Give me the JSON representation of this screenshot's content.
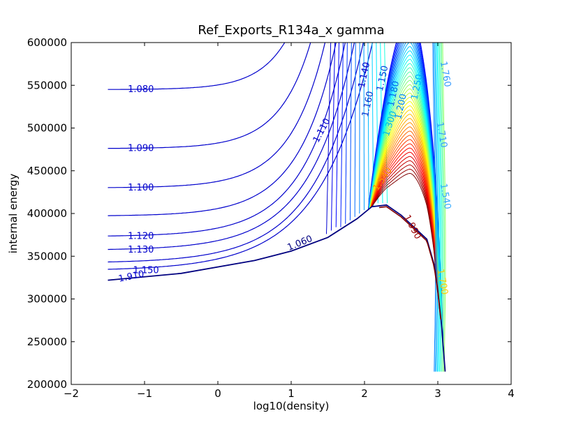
{
  "chart_data": {
    "type": "contour",
    "title": "Ref_Exports_R134a_x gamma",
    "xlabel": "log10(density)",
    "ylabel": "internal energy",
    "xlim": [
      -2,
      4
    ],
    "ylim": [
      200000,
      600000
    ],
    "x_ticks": [
      "−2",
      "−1",
      "0",
      "1",
      "2",
      "3",
      "4"
    ],
    "y_ticks": [
      "200000",
      "250000",
      "300000",
      "350000",
      "400000",
      "450000",
      "500000",
      "550000",
      "600000"
    ],
    "x_tick_values": [
      -2,
      -1,
      0,
      1,
      2,
      3,
      4
    ],
    "y_tick_values": [
      200000,
      250000,
      300000,
      350000,
      400000,
      450000,
      500000,
      550000,
      600000
    ],
    "grid": false,
    "colormap": "jet",
    "data_x_range": [
      -1.5,
      3.1
    ],
    "saturation_dome": {
      "x": [
        -1.5,
        -0.5,
        0.5,
        1.0,
        1.5,
        1.9,
        2.1,
        2.3,
        2.5,
        2.7,
        2.85,
        2.95,
        3.0,
        3.05,
        3.1
      ],
      "y": [
        322000,
        330000,
        345000,
        356000,
        372000,
        394000,
        408000,
        410000,
        398000,
        382000,
        370000,
        340000,
        310000,
        270000,
        215000
      ]
    },
    "contour_levels": [
      {
        "value": 1.08,
        "x_start": -0.7,
        "y_left": 545000
      },
      {
        "value": 1.09,
        "x_start": -0.5,
        "y_left": 476000
      },
      {
        "value": 1.1,
        "x_start": -0.7,
        "y_left": 430000
      },
      {
        "value": 1.11,
        "x_start": -1.5,
        "y_left": 397000
      },
      {
        "value": 1.12,
        "x_start": -0.7,
        "y_left": 373000
      },
      {
        "value": 1.13,
        "x_start": -0.7,
        "y_left": 357000
      },
      {
        "value": 1.14,
        "x_start": -1.5,
        "y_left": 342000
      },
      {
        "value": 1.15,
        "x_start": -0.7,
        "y_left": 333000
      }
    ],
    "contour_labels": [
      {
        "text": "1.080",
        "x": -1.05,
        "y": 545000,
        "color": "#0000cc",
        "angle": 0
      },
      {
        "text": "1.090",
        "x": -1.05,
        "y": 476000,
        "color": "#0000cc",
        "angle": 0
      },
      {
        "text": "1.100",
        "x": -1.05,
        "y": 430000,
        "color": "#0000cc",
        "angle": 0
      },
      {
        "text": "1.120",
        "x": -1.05,
        "y": 373000,
        "color": "#0000cc",
        "angle": 0
      },
      {
        "text": "1.130",
        "x": -1.05,
        "y": 357000,
        "color": "#0000cc",
        "angle": 0
      },
      {
        "text": "1.150",
        "x": -0.98,
        "y": 333000,
        "color": "#0000cc",
        "angle": 0
      },
      {
        "text": "1.110",
        "x": 1.42,
        "y": 497000,
        "color": "#0000cc",
        "angle": -62
      },
      {
        "text": "1.060",
        "x": 1.12,
        "y": 365000,
        "color": "#000080",
        "angle": -22
      },
      {
        "text": "1.910",
        "x": -1.18,
        "y": 326000,
        "color": "#0000cc",
        "angle": -12
      },
      {
        "text": "1.140",
        "x": 2.0,
        "y": 562000,
        "color": "#0000cc",
        "angle": -78
      },
      {
        "text": "1.160",
        "x": 2.05,
        "y": 528000,
        "color": "#0033cc",
        "angle": -78
      },
      {
        "text": "1.150",
        "x": 2.25,
        "y": 558000,
        "color": "#0044dd",
        "angle": -78
      },
      {
        "text": "1.180",
        "x": 2.4,
        "y": 540000,
        "color": "#0066ee",
        "angle": -78
      },
      {
        "text": "1.200",
        "x": 2.5,
        "y": 525000,
        "color": "#0088ff",
        "angle": -78
      },
      {
        "text": "1.250",
        "x": 2.72,
        "y": 548000,
        "color": "#00aaff",
        "angle": -78
      },
      {
        "text": "1.300",
        "x": 2.35,
        "y": 505000,
        "color": "#00bbee",
        "angle": -72
      },
      {
        "text": "1.760",
        "x": 3.1,
        "y": 563000,
        "color": "#3399ff",
        "angle": 80
      },
      {
        "text": "1.710",
        "x": 3.05,
        "y": 492000,
        "color": "#3399ff",
        "angle": 80
      },
      {
        "text": "1.540",
        "x": 3.1,
        "y": 420000,
        "color": "#33aaff",
        "angle": 80
      },
      {
        "text": "1.540",
        "x": 2.25,
        "y": 440000,
        "color": "#ff9900",
        "angle": -55
      },
      {
        "text": "1.990",
        "x": 2.65,
        "y": 384000,
        "color": "#990000",
        "angle": 62
      },
      {
        "text": "1.700",
        "x": 3.06,
        "y": 320000,
        "color": "#ffcc00",
        "angle": 80
      }
    ]
  }
}
